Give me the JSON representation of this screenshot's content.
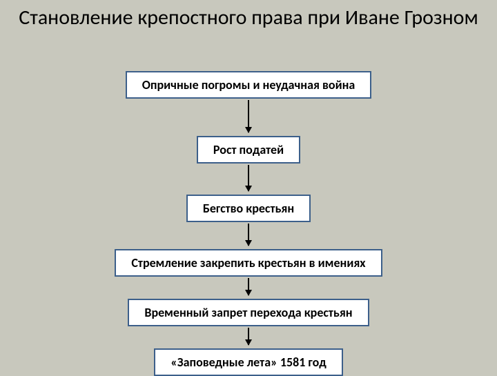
{
  "diagram": {
    "type": "flowchart",
    "title": "Становление крепостного права при Иване Грозном",
    "title_fontsize": 30,
    "background_color": "#c8c8bd",
    "box_background": "#ffffff",
    "box_border_color": "#3c5f8a",
    "box_border_width": 2,
    "box_font_weight": "bold",
    "box_fontsize": 18,
    "arrow_color": "#000000",
    "nodes": [
      {
        "label": "Опричные погромы и неудачная война",
        "arrow_height": 47
      },
      {
        "label": "Рост податей",
        "arrow_height": 38
      },
      {
        "label": "Бегство крестьян",
        "arrow_height": 32
      },
      {
        "label": "Стремление закрепить крестьян в имениях",
        "arrow_height": 25
      },
      {
        "label": "Временный запрет перехода крестьян",
        "arrow_height": 25
      },
      {
        "label": "«Заповедные лета» 1581 год",
        "arrow_height": 0
      }
    ]
  }
}
